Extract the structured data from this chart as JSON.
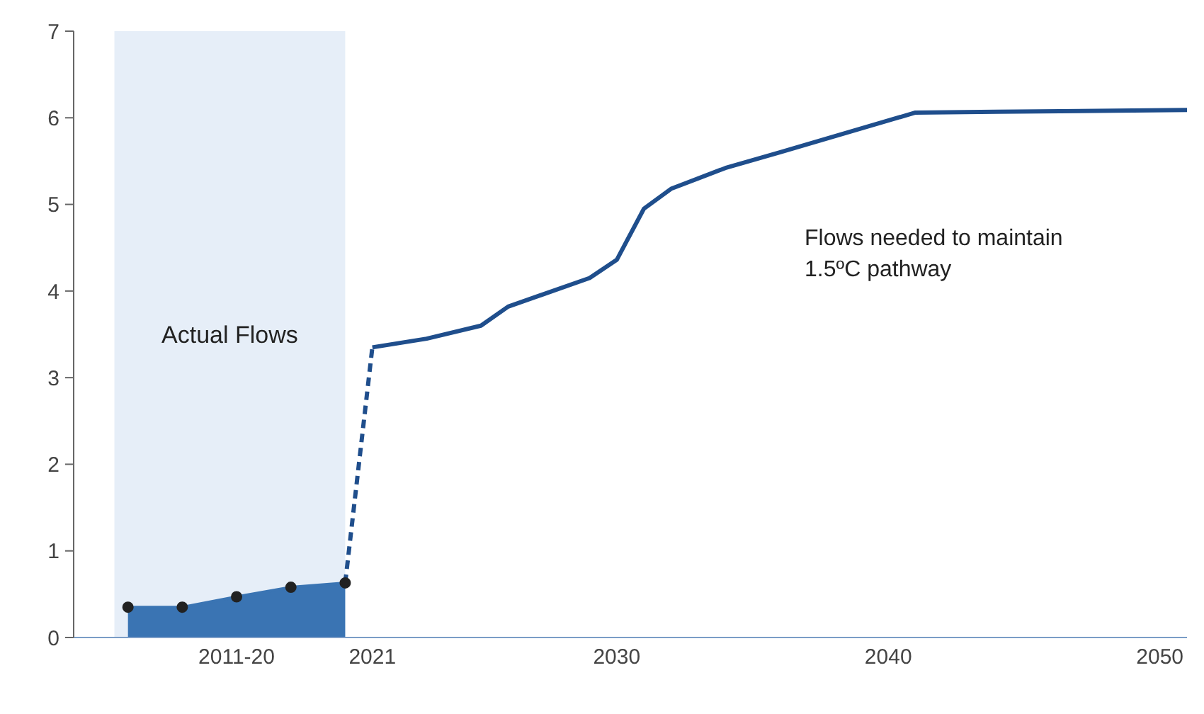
{
  "chart_data": {
    "type": "line",
    "xlim": [
      2010,
      2051
    ],
    "xticks": [
      {
        "value": 2016,
        "label": "2011-20"
      },
      2021,
      2030,
      2040,
      2050
    ],
    "ylim": [
      0,
      7
    ],
    "yticks": [
      0,
      1,
      2,
      3,
      4,
      5,
      6,
      7
    ],
    "grid": false,
    "legend": false,
    "series": [
      {
        "type": "area",
        "color": "#3a74b3",
        "marker": "circle",
        "x": [
          2012,
          2014,
          2016,
          2018,
          2020
        ],
        "values": [
          0.35,
          0.35,
          0.47,
          0.58,
          0.63
        ]
      },
      {
        "type": "line",
        "color": "#1f4e8c",
        "line_style": "dashed",
        "x": [
          2020,
          2021
        ],
        "values": [
          0.63,
          3.35
        ]
      },
      {
        "color": "#1f4e8c",
        "line_style": "solid",
        "x": [
          2021,
          2023,
          2025,
          2026,
          2027,
          2029,
          2030,
          2031,
          2032,
          2034,
          2036,
          2041,
          2044,
          2051
        ],
        "values": [
          3.35,
          3.45,
          3.6,
          3.82,
          3.93,
          4.15,
          4.36,
          4.95,
          5.18,
          5.42,
          5.6,
          6.06,
          6.07,
          6.09
        ]
      }
    ],
    "bands": [
      {
        "axis": "x",
        "from": 2011.5,
        "to": 2020,
        "label": "Actual Flows",
        "color": "#e6eef8"
      }
    ],
    "annotations": [
      "Flows needed to maintain 1.5ºC pathway"
    ]
  }
}
